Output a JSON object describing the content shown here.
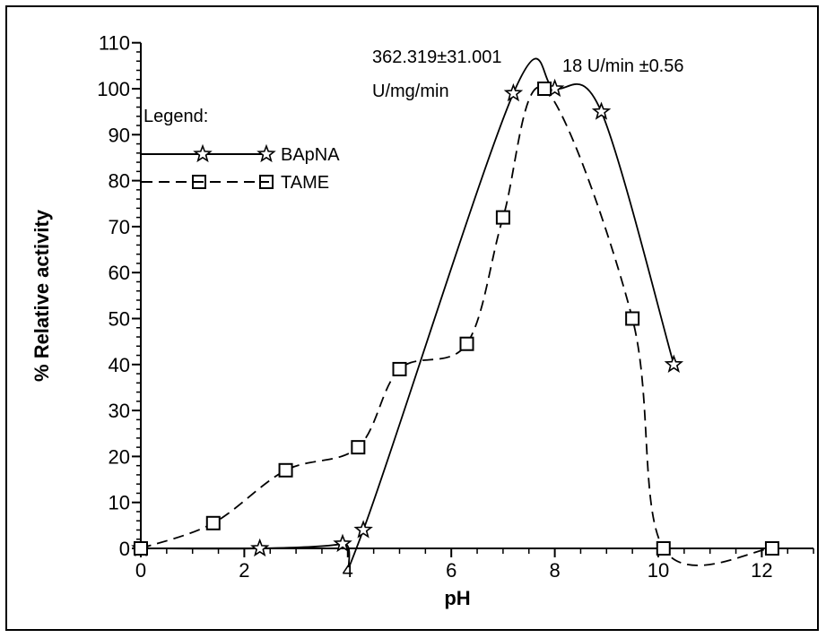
{
  "chart_data": {
    "type": "line",
    "xlabel": "pH",
    "ylabel": "% Relative activity",
    "xlim": [
      0,
      13
    ],
    "ylim": [
      0,
      110
    ],
    "x_ticks": [
      0,
      2,
      4,
      6,
      8,
      10,
      12
    ],
    "y_ticks": [
      0,
      10,
      20,
      30,
      40,
      50,
      60,
      70,
      80,
      90,
      100,
      110
    ],
    "legend": {
      "title": "Legend:",
      "position": "top-left",
      "entries": [
        {
          "name": "BApNA",
          "style": "solid",
          "marker": "star"
        },
        {
          "name": "TAME",
          "style": "dashed",
          "marker": "square"
        }
      ]
    },
    "annotations": [
      {
        "text": "362.319±31.001",
        "series": "BApNA"
      },
      {
        "text": "U/mg/min",
        "series": "BApNA"
      },
      {
        "text": "18  U/min  ±0.56",
        "series": "TAME"
      }
    ],
    "series": [
      {
        "name": "BApNA",
        "style": "solid",
        "marker": "star",
        "color": "#000000",
        "points": [
          [
            0,
            0
          ],
          [
            2.3,
            0
          ],
          [
            3.9,
            1
          ],
          [
            4.3,
            4
          ],
          [
            7.2,
            99
          ],
          [
            8.0,
            100
          ],
          [
            8.9,
            95
          ],
          [
            10.3,
            40
          ]
        ]
      },
      {
        "name": "TAME",
        "style": "dashed",
        "marker": "square",
        "color": "#000000",
        "points": [
          [
            0,
            0
          ],
          [
            1.4,
            5.5
          ],
          [
            2.8,
            17
          ],
          [
            4.2,
            22
          ],
          [
            5.0,
            39
          ],
          [
            6.3,
            44.5
          ],
          [
            7.0,
            72
          ],
          [
            7.8,
            100
          ],
          [
            9.5,
            50
          ],
          [
            10.1,
            0
          ],
          [
            12.2,
            0
          ]
        ]
      }
    ]
  }
}
